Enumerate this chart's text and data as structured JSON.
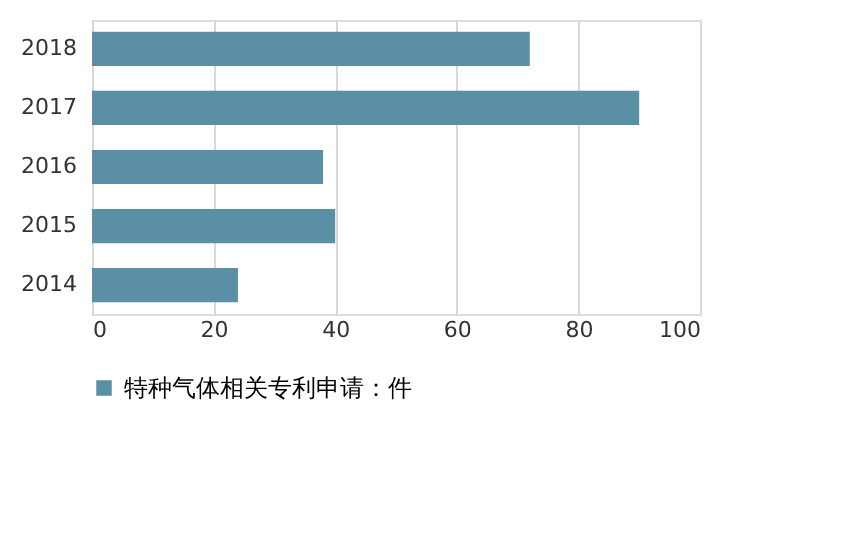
{
  "chart_data": {
    "type": "bar",
    "orientation": "horizontal",
    "categories": [
      "2018",
      "2017",
      "2016",
      "2015",
      "2014"
    ],
    "series": [
      {
        "name": "特种气体相关专利申请：件",
        "color": "#5b8fa5",
        "values": [
          72,
          90,
          38,
          40,
          24
        ]
      }
    ],
    "xlim": [
      0,
      100
    ],
    "xticks": [
      0,
      20,
      40,
      60,
      80,
      100
    ],
    "grid": "x",
    "legend": "bottom"
  }
}
